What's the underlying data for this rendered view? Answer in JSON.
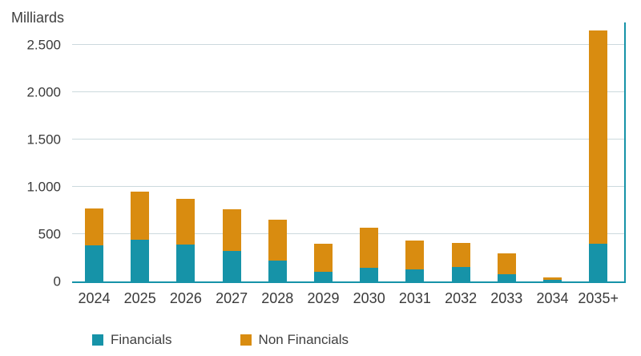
{
  "chart_data": {
    "type": "bar",
    "stacked": true,
    "title": "Milliards",
    "categories": [
      "2024",
      "2025",
      "2026",
      "2027",
      "2028",
      "2029",
      "2030",
      "2031",
      "2032",
      "2033",
      "2034",
      "2035+"
    ],
    "series": [
      {
        "name": "Financials",
        "color": "#1693A8",
        "values": [
          380,
          440,
          390,
          320,
          220,
          100,
          140,
          130,
          150,
          80,
          15,
          400
        ]
      },
      {
        "name": "Non Financials",
        "color": "#D98C10",
        "values": [
          390,
          510,
          480,
          440,
          430,
          300,
          430,
          300,
          260,
          220,
          30,
          2250
        ]
      }
    ],
    "ylim": [
      0,
      2500
    ],
    "yticks": [
      {
        "value": 0,
        "label": "0"
      },
      {
        "value": 500,
        "label": "500"
      },
      {
        "value": 1000,
        "label": "1.000"
      },
      {
        "value": 1500,
        "label": "1.500"
      },
      {
        "value": 2000,
        "label": "2.000"
      },
      {
        "value": 2500,
        "label": "2.500"
      }
    ],
    "grid": "horizontal",
    "legend_position": "bottom"
  }
}
